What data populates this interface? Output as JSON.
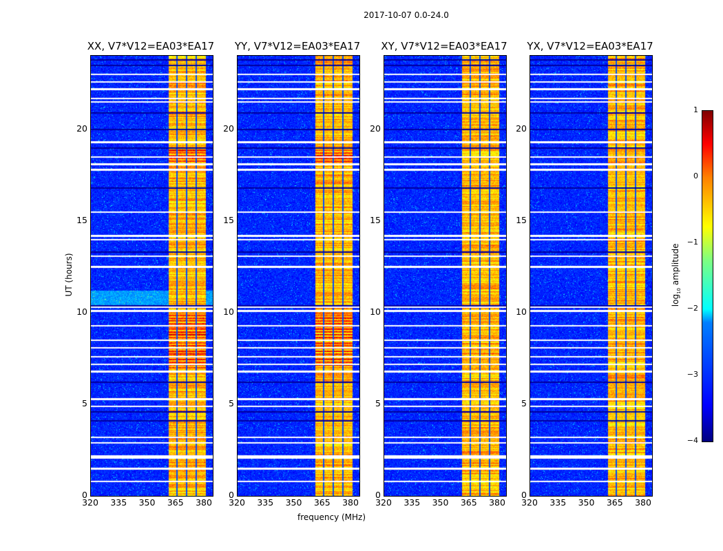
{
  "chart_data": {
    "type": "heatmap",
    "suptitle": "2017-10-07 0.0-24.0",
    "xlabel": "frequency (MHz)",
    "ylabel": "UT (hours)",
    "xlim": [
      320,
      384
    ],
    "ylim": [
      0,
      24
    ],
    "xticks": [
      "320",
      "335",
      "350",
      "365",
      "380"
    ],
    "xtick_values": [
      320,
      335,
      350,
      365,
      380
    ],
    "yticks": [
      "0",
      "5",
      "10",
      "15",
      "20"
    ],
    "ytick_values": [
      0,
      5,
      10,
      15,
      20
    ],
    "panels": [
      {
        "title": "XX, V7*V12=EA03*EA17"
      },
      {
        "title": "YY, V7*V12=EA03*EA17"
      },
      {
        "title": "XY, V7*V12=EA03*EA17"
      },
      {
        "title": "YX, V7*V12=EA03*EA17"
      }
    ],
    "background_log_amplitude": -3.2,
    "band_mhz": [
      361,
      380.5
    ],
    "band_log_amplitude": -0.9,
    "band_gaps_mhz": [
      365.3,
      370.3,
      375.3
    ],
    "hot_periods_hours": [
      [
        18,
        19
      ],
      [
        7,
        10
      ]
    ],
    "flagged_rows_hours": [
      0.8,
      1.5,
      2.1,
      2.2,
      2.9,
      3.2,
      4.9,
      5.3,
      6.8,
      7.2,
      7.6,
      8.1,
      8.5,
      9.3,
      10.1,
      10.3,
      12.5,
      13.1,
      14.0,
      14.2,
      15.5,
      17.8,
      18.1,
      18.5,
      19.3,
      21.5,
      21.7,
      22.2,
      22.6,
      23.0
    ],
    "dark_rows_hours": [
      4.1,
      4.6,
      6.2,
      10.4,
      13.3,
      16.8,
      19.0,
      20.0,
      20.9,
      23.5,
      23.8
    ],
    "colorbar": {
      "label": "log10 amplitude",
      "label_base": "log",
      "label_sub": "10",
      "label_rest": " amplitude",
      "range": [
        -4,
        1
      ],
      "ticks": [
        "1",
        "0",
        "−1",
        "−2",
        "−3",
        "−4"
      ],
      "tick_values": [
        1,
        0,
        -1,
        -2,
        -3,
        -4
      ],
      "colormap": "jet"
    }
  }
}
